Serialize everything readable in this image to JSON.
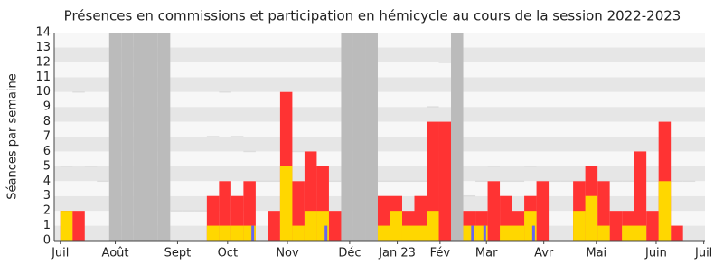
{
  "chart_data": {
    "type": "bar",
    "title": "Présences en commissions et participation en hémicycle au cours de la session 2022-2023",
    "y_label": "Séances par semaine",
    "xlim": [
      -1,
      52.3
    ],
    "xticks": [
      {
        "value": -0.5,
        "label": "Juil"
      },
      {
        "value": 4,
        "label": "Août"
      },
      {
        "value": 9.1,
        "label": "Sept"
      },
      {
        "value": 13.2,
        "label": "Oct"
      },
      {
        "value": 18.1,
        "label": "Nov"
      },
      {
        "value": 23.2,
        "label": "Déc"
      },
      {
        "value": 27.1,
        "label": "Jan 23"
      },
      {
        "value": 30.6,
        "label": "Fév"
      },
      {
        "value": 34.4,
        "label": "Mar"
      },
      {
        "value": 39.1,
        "label": "Avr"
      },
      {
        "value": 43.4,
        "label": "Mai"
      },
      {
        "value": 48.3,
        "label": "Juin"
      },
      {
        "value": 52.2,
        "label": "Juil"
      }
    ],
    "ylim": [
      0,
      14
    ],
    "yticks": [
      0,
      1,
      2,
      3,
      4,
      5,
      6,
      7,
      8,
      9,
      10,
      11,
      12,
      13,
      14
    ],
    "shaded_weeks": [
      4,
      5,
      6,
      7,
      8,
      23,
      24,
      25,
      32
    ],
    "shade_color": "#bbbbbb",
    "series": [
      {
        "kind": "step",
        "color": "#dddddd",
        "values": [
          5,
          10,
          5,
          4,
          null,
          null,
          null,
          null,
          null,
          2,
          2,
          2,
          7,
          10,
          7,
          6,
          4,
          4,
          6,
          6,
          5,
          4,
          4,
          null,
          null,
          null,
          4,
          4,
          4,
          4,
          9,
          12,
          null,
          3,
          4,
          5,
          4,
          4,
          5,
          4,
          4,
          4,
          4,
          4,
          4,
          4,
          4,
          4,
          4,
          5,
          4,
          4
        ]
      },
      {
        "kind": "bar",
        "color": "#ff3333",
        "values": [
          2,
          2,
          0,
          0,
          0,
          0,
          0,
          0,
          0,
          0,
          0,
          0,
          3,
          4,
          3,
          4,
          0,
          2,
          10,
          4,
          6,
          5,
          2,
          0,
          0,
          0,
          3,
          3,
          2,
          3,
          8,
          8,
          0,
          2,
          2,
          4,
          3,
          2,
          3,
          4,
          0,
          0,
          4,
          5,
          4,
          2,
          2,
          6,
          2,
          8,
          1,
          0
        ]
      },
      {
        "kind": "bar",
        "color": "#ffd700",
        "values": [
          2,
          0,
          0,
          0,
          0,
          0,
          0,
          0,
          0,
          0,
          0,
          0,
          1,
          1,
          1,
          1,
          0,
          0,
          5,
          1,
          2,
          2,
          0,
          0,
          0,
          0,
          1,
          2,
          1,
          1,
          2,
          0,
          0,
          1,
          1,
          0,
          1,
          1,
          2,
          0,
          0,
          0,
          2,
          3,
          1,
          0,
          1,
          1,
          0,
          4,
          0,
          0
        ]
      },
      {
        "kind": "thin",
        "color": "#6666ee",
        "values": [
          0,
          0,
          0,
          0,
          0,
          0,
          0,
          0,
          0,
          0,
          0,
          0,
          0,
          0,
          0,
          1,
          0,
          0,
          0,
          0,
          0,
          1,
          0,
          0,
          0,
          0,
          0,
          0,
          0,
          0,
          0,
          0,
          0,
          1,
          1,
          0,
          0,
          0,
          1,
          0,
          0,
          0,
          0,
          0,
          0,
          0,
          0,
          0,
          0,
          0,
          0,
          0
        ]
      }
    ]
  }
}
